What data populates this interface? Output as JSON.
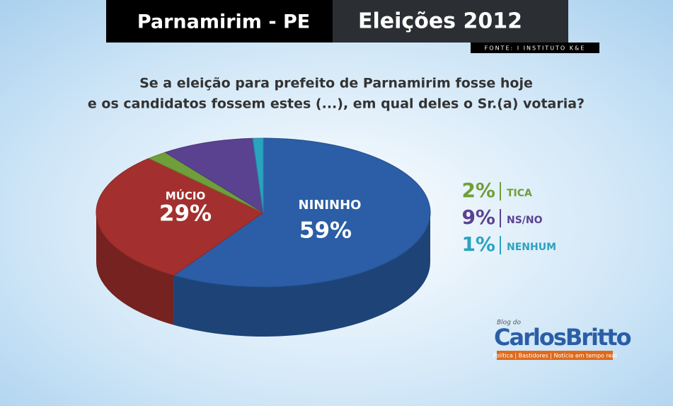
{
  "header": {
    "place": "Parnamirim - PE",
    "event": "Eleições 2012",
    "source": "FONTE: I INSTITUTO K&E"
  },
  "logo": {
    "pre": "Blog do",
    "name": "CarlosBritto",
    "tagline": "Política | Bastidores | Notícia em tempo real"
  },
  "chart_data": {
    "type": "pie",
    "title": [
      "Se a eleição para prefeito de Parnamirim fosse hoje",
      "e os candidatos fossem estes (...), em qual deles o Sr.(a) votaria?"
    ],
    "categories": [
      "NININHO",
      "MÚCIO",
      "TICA",
      "NS/NO",
      "NENHUM"
    ],
    "values": [
      59,
      29,
      2,
      9,
      1
    ],
    "value_labels": [
      "59%",
      "29%",
      "2%",
      "9%",
      "1%"
    ],
    "colors": [
      "#2b5ea6",
      "#a3302e",
      "#6f9e3a",
      "#5b4290",
      "#2aa3bf"
    ]
  }
}
